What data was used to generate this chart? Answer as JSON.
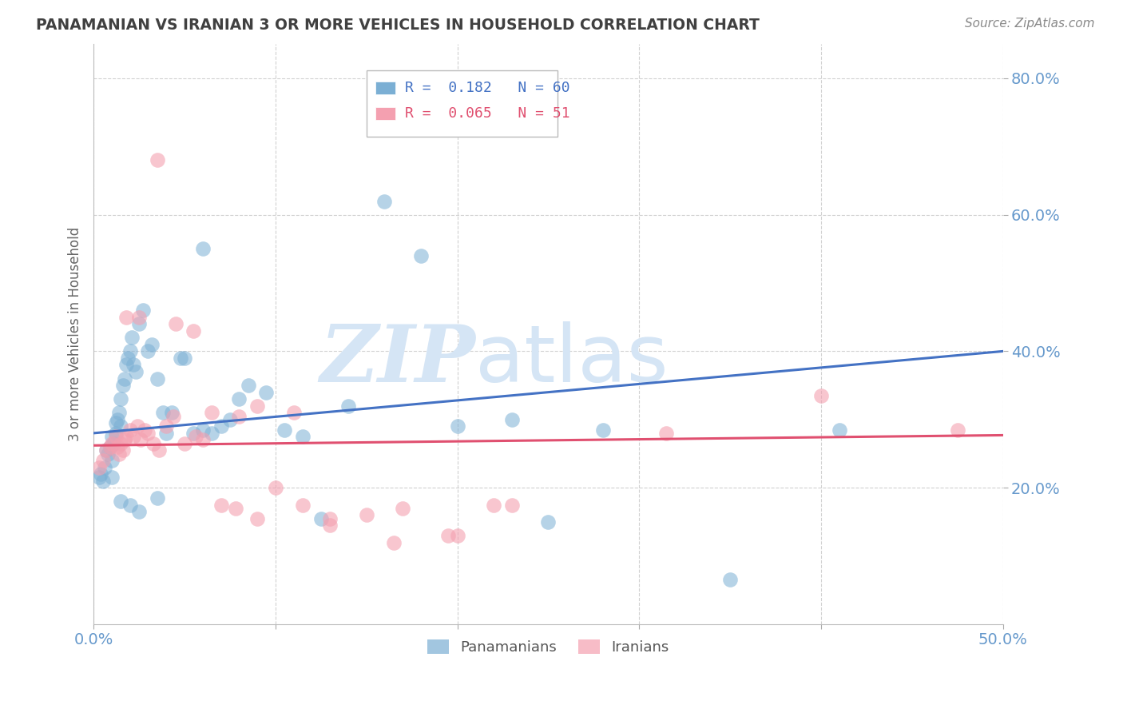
{
  "title": "PANAMANIAN VS IRANIAN 3 OR MORE VEHICLES IN HOUSEHOLD CORRELATION CHART",
  "source": "Source: ZipAtlas.com",
  "ylabel": "3 or more Vehicles in Household",
  "xlim": [
    0.0,
    0.5
  ],
  "ylim": [
    0.0,
    0.85
  ],
  "yticks": [
    0.2,
    0.4,
    0.6,
    0.8
  ],
  "ytick_labels": [
    "20.0%",
    "40.0%",
    "60.0%",
    "80.0%"
  ],
  "xticks": [
    0.0,
    0.1,
    0.2,
    0.3,
    0.4,
    0.5
  ],
  "xtick_labels": [
    "0.0%",
    "",
    "",
    "",
    "",
    "50.0%"
  ],
  "blue_R": 0.182,
  "blue_N": 60,
  "pink_R": 0.065,
  "pink_N": 51,
  "blue_color": "#7BAFD4",
  "pink_color": "#F4A0B0",
  "blue_line_color": "#4472C4",
  "pink_line_color": "#E05070",
  "watermark_zip": "ZIP",
  "watermark_atlas": "atlas",
  "watermark_color": "#D5E5F5",
  "background_color": "#FFFFFF",
  "grid_color": "#CCCCCC",
  "axis_label_color": "#6699CC",
  "title_color": "#404040",
  "legend_label_blue": "Panamanians",
  "legend_label_pink": "Iranians",
  "blue_x": [
    0.003,
    0.004,
    0.005,
    0.006,
    0.007,
    0.008,
    0.009,
    0.01,
    0.01,
    0.011,
    0.012,
    0.012,
    0.013,
    0.014,
    0.015,
    0.015,
    0.016,
    0.017,
    0.018,
    0.019,
    0.02,
    0.021,
    0.022,
    0.023,
    0.025,
    0.027,
    0.03,
    0.032,
    0.035,
    0.038,
    0.04,
    0.043,
    0.048,
    0.055,
    0.06,
    0.065,
    0.07,
    0.075,
    0.085,
    0.095,
    0.105,
    0.115,
    0.125,
    0.14,
    0.16,
    0.18,
    0.2,
    0.23,
    0.25,
    0.28,
    0.01,
    0.015,
    0.02,
    0.025,
    0.035,
    0.05,
    0.06,
    0.08,
    0.35,
    0.41
  ],
  "blue_y": [
    0.215,
    0.22,
    0.21,
    0.23,
    0.255,
    0.25,
    0.26,
    0.275,
    0.24,
    0.265,
    0.28,
    0.295,
    0.3,
    0.31,
    0.33,
    0.29,
    0.35,
    0.36,
    0.38,
    0.39,
    0.4,
    0.42,
    0.38,
    0.37,
    0.44,
    0.46,
    0.4,
    0.41,
    0.36,
    0.31,
    0.28,
    0.31,
    0.39,
    0.28,
    0.285,
    0.28,
    0.29,
    0.3,
    0.35,
    0.34,
    0.285,
    0.275,
    0.155,
    0.32,
    0.62,
    0.54,
    0.29,
    0.3,
    0.15,
    0.285,
    0.215,
    0.18,
    0.175,
    0.165,
    0.185,
    0.39,
    0.55,
    0.33,
    0.065,
    0.285
  ],
  "pink_x": [
    0.003,
    0.005,
    0.007,
    0.009,
    0.01,
    0.012,
    0.013,
    0.014,
    0.015,
    0.016,
    0.017,
    0.018,
    0.02,
    0.022,
    0.024,
    0.026,
    0.028,
    0.03,
    0.033,
    0.036,
    0.04,
    0.044,
    0.05,
    0.056,
    0.06,
    0.07,
    0.08,
    0.09,
    0.1,
    0.115,
    0.13,
    0.15,
    0.17,
    0.195,
    0.22,
    0.018,
    0.025,
    0.035,
    0.045,
    0.055,
    0.065,
    0.078,
    0.09,
    0.11,
    0.13,
    0.165,
    0.2,
    0.23,
    0.4,
    0.475,
    0.315
  ],
  "pink_y": [
    0.23,
    0.24,
    0.255,
    0.26,
    0.265,
    0.275,
    0.26,
    0.25,
    0.265,
    0.255,
    0.27,
    0.275,
    0.285,
    0.275,
    0.29,
    0.27,
    0.285,
    0.28,
    0.265,
    0.255,
    0.29,
    0.305,
    0.265,
    0.275,
    0.27,
    0.175,
    0.305,
    0.32,
    0.2,
    0.175,
    0.155,
    0.16,
    0.17,
    0.13,
    0.175,
    0.45,
    0.45,
    0.68,
    0.44,
    0.43,
    0.31,
    0.17,
    0.155,
    0.31,
    0.145,
    0.12,
    0.13,
    0.175,
    0.335,
    0.285,
    0.28
  ]
}
